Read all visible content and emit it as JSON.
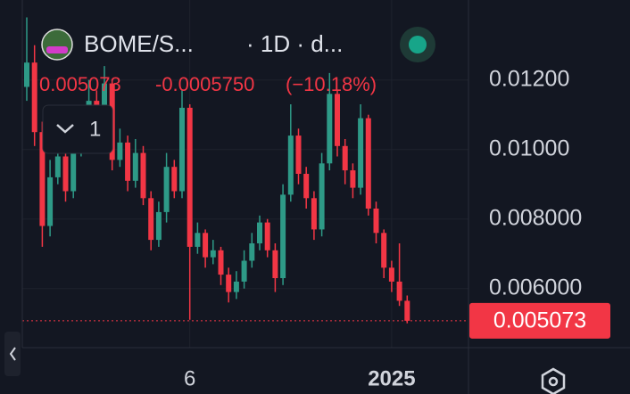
{
  "chart_data": {
    "type": "candlestick",
    "symbol": "BOME/S...",
    "interval": "· 1D · d...",
    "last": "0.005073",
    "change": "-0.0005750",
    "change_pct": "(−10.18%)",
    "indicator_count": 1,
    "up_color": "#2e9a87",
    "down_color": "#f23645",
    "categories": [
      null,
      null,
      null,
      null,
      null,
      null,
      null,
      null,
      null,
      null,
      null,
      null,
      null,
      null,
      null,
      null,
      null,
      null,
      null,
      null,
      null,
      "6",
      null,
      null,
      null,
      null,
      null,
      null,
      null,
      null,
      null,
      null,
      null,
      null,
      null,
      null,
      null,
      null,
      null,
      null,
      null,
      null,
      null,
      null,
      null,
      null,
      null,
      "2025",
      null,
      null
    ],
    "open": [
      0.0118,
      0.0125,
      0.0105,
      0.0078,
      0.0092,
      0.0098,
      0.0088,
      0.0101,
      0.0108,
      0.0114,
      0.0104,
      0.0119,
      0.0097,
      0.0102,
      0.0091,
      0.0099,
      0.0086,
      0.0074,
      0.0082,
      0.0095,
      0.0088,
      0.0112,
      0.0072,
      0.0076,
      0.0069,
      0.0071,
      0.0064,
      0.0059,
      0.0062,
      0.0068,
      0.0073,
      0.0079,
      0.0071,
      0.0063,
      0.0087,
      0.0104,
      0.0093,
      0.0086,
      0.0077,
      0.0096,
      0.0116,
      0.0101,
      0.0094,
      0.0089,
      0.0109,
      0.0083,
      0.0076,
      0.0066,
      0.0062,
      0.005648
    ],
    "high": [
      0.0138,
      0.013,
      0.0108,
      0.0097,
      0.0103,
      0.0101,
      0.0105,
      0.0112,
      0.012,
      0.0117,
      0.0124,
      0.012,
      0.0106,
      0.0104,
      0.0103,
      0.0101,
      0.0088,
      0.0085,
      0.0099,
      0.0097,
      0.0117,
      0.0113,
      0.0079,
      0.0077,
      0.0074,
      0.0072,
      0.0066,
      0.0065,
      0.0071,
      0.0076,
      0.0081,
      0.008,
      0.0073,
      0.009,
      0.0113,
      0.0106,
      0.0095,
      0.0088,
      0.0099,
      0.0122,
      0.0117,
      0.0103,
      0.0096,
      0.0113,
      0.011,
      0.0085,
      0.0077,
      0.0068,
      0.0073,
      0.0058
    ],
    "low": [
      0.0114,
      0.0101,
      0.0072,
      0.0075,
      0.009,
      0.0085,
      0.0086,
      0.0098,
      0.0105,
      0.0101,
      0.0102,
      0.0094,
      0.0095,
      0.0088,
      0.0089,
      0.0084,
      0.0071,
      0.0072,
      0.0079,
      0.0086,
      0.0086,
      0.0051,
      0.007,
      0.0066,
      0.0067,
      0.0061,
      0.0056,
      0.0057,
      0.006,
      0.0066,
      0.0071,
      0.0069,
      0.0059,
      0.0061,
      0.0085,
      0.009,
      0.0083,
      0.0074,
      0.0075,
      0.0094,
      0.0098,
      0.009,
      0.0086,
      0.0087,
      0.0081,
      0.0073,
      0.0063,
      0.0059,
      0.0055,
      0.005
    ],
    "close": [
      0.0125,
      0.0105,
      0.0078,
      0.0092,
      0.0098,
      0.0088,
      0.0101,
      0.0108,
      0.0114,
      0.0104,
      0.0119,
      0.0097,
      0.0102,
      0.0091,
      0.0099,
      0.0086,
      0.0074,
      0.0082,
      0.0095,
      0.0088,
      0.0112,
      0.0072,
      0.0076,
      0.0069,
      0.0071,
      0.0064,
      0.0059,
      0.0062,
      0.0068,
      0.0073,
      0.0079,
      0.0071,
      0.0063,
      0.0087,
      0.0104,
      0.0093,
      0.0086,
      0.0077,
      0.0096,
      0.0116,
      0.0101,
      0.0094,
      0.0089,
      0.0109,
      0.0083,
      0.0076,
      0.0066,
      0.0062,
      0.005648,
      0.005073
    ],
    "ylim": [
      0.0043,
      0.0143
    ],
    "yticks": [
      {
        "value": 0.006,
        "label": "0.006000"
      },
      {
        "value": 0.008,
        "label": "0.008000"
      },
      {
        "value": 0.01,
        "label": "0.01000"
      },
      {
        "value": 0.012,
        "label": "0.01200"
      }
    ]
  }
}
